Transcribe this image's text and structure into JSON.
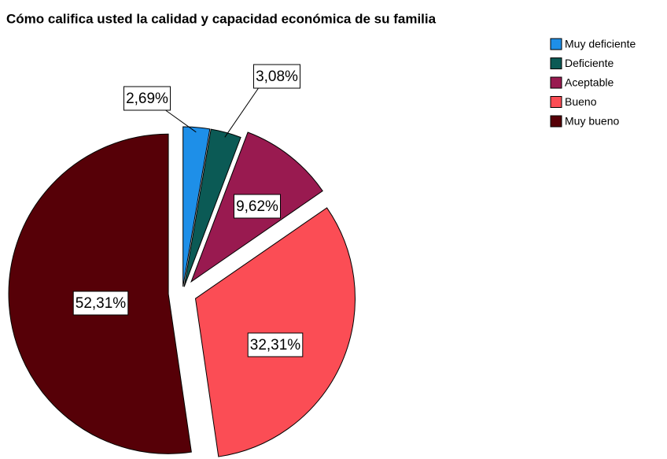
{
  "chart_data": {
    "type": "pie",
    "title": "Cómo califica usted la calidad y capacidad económica de su familia",
    "categories": [
      "Muy deficiente",
      "Deficiente",
      "Aceptable",
      "Bueno",
      "Muy bueno"
    ],
    "values": [
      2.69,
      3.08,
      9.62,
      32.31,
      52.31
    ],
    "value_labels": [
      "2,69%",
      "3,08%",
      "9,62%",
      "32,31%",
      "52,31%"
    ],
    "colors": [
      "#1e8fe8",
      "#0b5a55",
      "#991a50",
      "#fb4d55",
      "#560007"
    ],
    "legend": "top-right"
  }
}
